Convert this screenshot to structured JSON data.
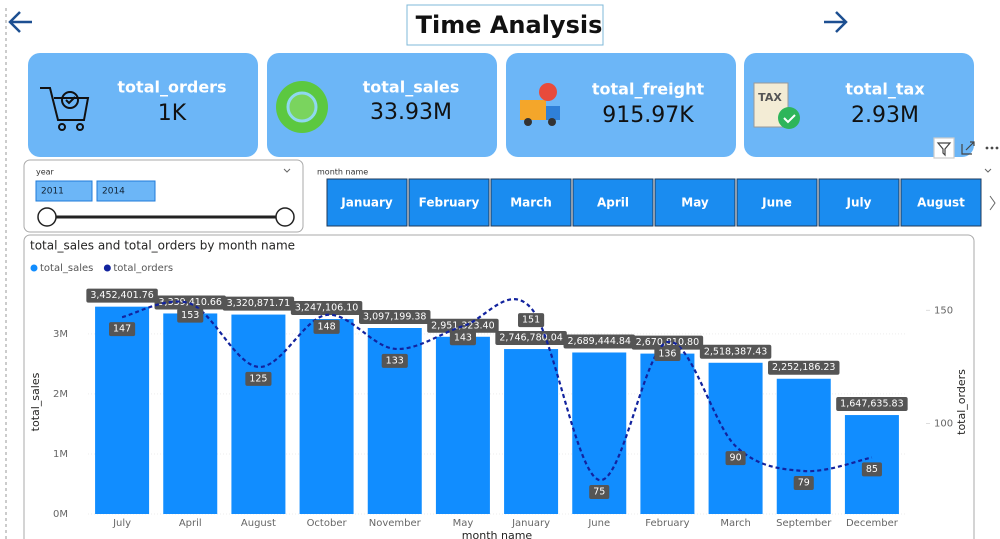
{
  "header": {
    "title": "Time Analysis"
  },
  "cards": [
    {
      "label": "total_orders",
      "value": "1K"
    },
    {
      "label": "total_sales",
      "value": "33.93M"
    },
    {
      "label": "total_freight",
      "value": "915.97K"
    },
    {
      "label": "total_tax",
      "value": "2.93M"
    }
  ],
  "year_slicer": {
    "label": "year",
    "start": "2011",
    "end": "2014"
  },
  "month_slicer": {
    "label": "month name",
    "items": [
      "January",
      "February",
      "March",
      "April",
      "May",
      "June",
      "July",
      "August"
    ]
  },
  "chart_data": {
    "type": "combo",
    "title": "total_sales and total_orders by month name",
    "xlabel": "month name",
    "ylabel": "total_sales",
    "y2label": "total_orders",
    "legend": "top-left",
    "categories": [
      "July",
      "April",
      "August",
      "October",
      "November",
      "May",
      "January",
      "June",
      "February",
      "March",
      "September",
      "December"
    ],
    "series": [
      {
        "name": "total_sales",
        "type": "bar",
        "color": "#118dff",
        "values": [
          3452401.76,
          3339410.66,
          3320871.71,
          3247106.1,
          3097199.38,
          2951323.4,
          2746780.04,
          2689444.84,
          2670810.8,
          2518387.43,
          2252186.23,
          1647635.83
        ],
        "value_labels": [
          "3,452,401.76",
          "3,339,410.66",
          "3,320,871.71",
          "3,247,106.10",
          "3,097,199.38",
          "2,951,323.40",
          "2,746,780.04",
          "2,689,444.84",
          "2,670,810.80",
          "2,518,387.43",
          "2,252,186.23",
          "1,647,635.83"
        ]
      },
      {
        "name": "total_orders",
        "type": "line",
        "color": "#12239e",
        "axis": "y2",
        "values": [
          147,
          153,
          125,
          148,
          133,
          143,
          151,
          75,
          136,
          90,
          79,
          85
        ]
      }
    ],
    "ylim": [
      0,
      3730000
    ],
    "yticks": [
      {
        "value": 0,
        "label": "0M"
      },
      {
        "value": 1000000,
        "label": "1M"
      },
      {
        "value": 2000000,
        "label": "2M"
      },
      {
        "value": 3000000,
        "label": "3M"
      }
    ],
    "y2lim": [
      60,
      159
    ],
    "y2ticks": [
      100,
      150
    ]
  }
}
